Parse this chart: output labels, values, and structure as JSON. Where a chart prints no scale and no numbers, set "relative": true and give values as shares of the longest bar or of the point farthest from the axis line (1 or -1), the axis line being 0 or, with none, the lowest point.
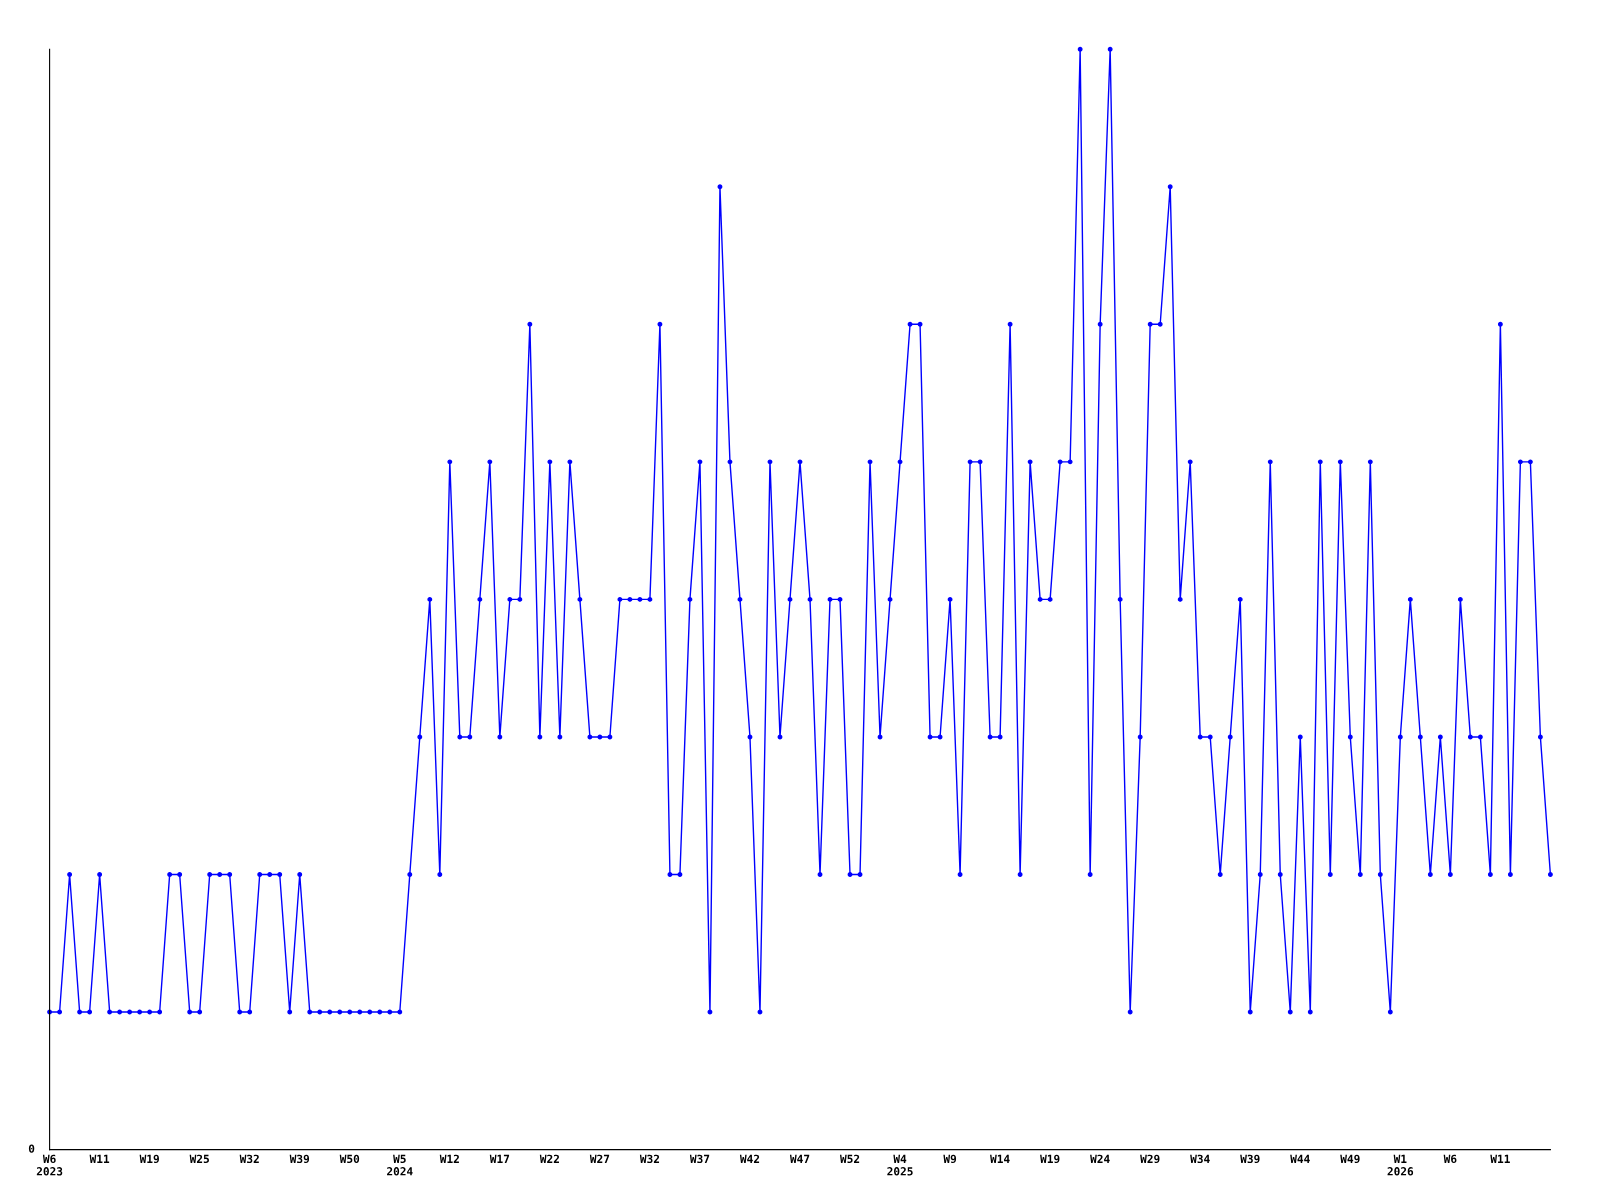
{
  "chart_data": {
    "type": "line",
    "relative": true,
    "annotations": [
      "0"
    ],
    "marker": "circle",
    "grid": false,
    "legend": false,
    "categories": [
      "W6\n2023",
      null,
      null,
      null,
      null,
      "W11",
      null,
      null,
      null,
      null,
      "W19",
      null,
      null,
      null,
      null,
      "W25",
      null,
      null,
      null,
      null,
      "W32",
      null,
      null,
      null,
      null,
      "W39",
      null,
      null,
      null,
      null,
      "W50",
      null,
      null,
      null,
      null,
      "W5\n2024",
      null,
      null,
      null,
      null,
      "W12",
      null,
      null,
      null,
      null,
      "W17",
      null,
      null,
      null,
      null,
      "W22",
      null,
      null,
      null,
      null,
      "W27",
      null,
      null,
      null,
      null,
      "W32",
      null,
      null,
      null,
      null,
      "W37",
      null,
      null,
      null,
      null,
      "W42",
      null,
      null,
      null,
      null,
      "W47",
      null,
      null,
      null,
      null,
      "W52",
      null,
      null,
      null,
      null,
      "W4\n2025",
      null,
      null,
      null,
      null,
      "W9",
      null,
      null,
      null,
      null,
      "W14",
      null,
      null,
      null,
      null,
      "W19",
      null,
      null,
      null,
      null,
      "W24",
      null,
      null,
      null,
      null,
      "W29",
      null,
      null,
      null,
      null,
      "W34",
      null,
      null,
      null,
      null,
      "W39",
      null,
      null,
      null,
      null,
      "W44",
      null,
      null,
      null,
      null,
      "W49",
      null,
      null,
      null,
      null,
      "W1\n2026",
      null,
      null,
      null,
      null,
      "W6",
      null,
      null,
      null,
      null,
      "W11",
      null,
      null,
      null,
      null,
      null
    ],
    "series": [
      {
        "color": "#0000ff",
        "values": [
          0.125,
          0.125,
          0.25,
          0.125,
          0.125,
          0.25,
          0.125,
          0.125,
          0.125,
          0.125,
          0.125,
          0.125,
          0.25,
          0.25,
          0.125,
          0.125,
          0.25,
          0.25,
          0.25,
          0.125,
          0.125,
          0.25,
          0.25,
          0.25,
          0.125,
          0.25,
          0.125,
          0.125,
          0.125,
          0.125,
          0.125,
          0.125,
          0.125,
          0.125,
          0.125,
          0.125,
          0.25,
          0.375,
          0.5,
          0.25,
          0.625,
          0.375,
          0.375,
          0.5,
          0.625,
          0.375,
          0.5,
          0.5,
          0.75,
          0.375,
          0.625,
          0.375,
          0.625,
          0.5,
          0.375,
          0.375,
          0.375,
          0.5,
          0.5,
          0.5,
          0.5,
          0.75,
          0.25,
          0.25,
          0.5,
          0.625,
          0.125,
          0.875,
          0.625,
          0.5,
          0.375,
          0.125,
          0.625,
          0.375,
          0.5,
          0.625,
          0.5,
          0.25,
          0.5,
          0.5,
          0.25,
          0.25,
          0.625,
          0.375,
          0.5,
          0.625,
          0.75,
          0.75,
          0.375,
          0.375,
          0.5,
          0.25,
          0.625,
          0.625,
          0.375,
          0.375,
          0.75,
          0.25,
          0.625,
          0.5,
          0.5,
          0.625,
          0.625,
          1,
          0.25,
          0.75,
          1,
          0.5,
          0.125,
          0.375,
          0.75,
          0.75,
          0.875,
          0.5,
          0.625,
          0.375,
          0.375,
          0.25,
          0.375,
          0.5,
          0.125,
          0.25,
          0.625,
          0.25,
          0.125,
          0.375,
          0.125,
          0.625,
          0.25,
          0.625,
          0.375,
          0.25,
          0.625,
          0.25,
          0.125,
          0.375,
          0.5,
          0.375,
          0.25,
          0.375,
          0.25,
          0.5,
          0.375,
          0.375,
          0.25,
          0.75,
          0.25,
          0.625,
          0.625,
          0.375,
          0.25
        ]
      }
    ]
  }
}
